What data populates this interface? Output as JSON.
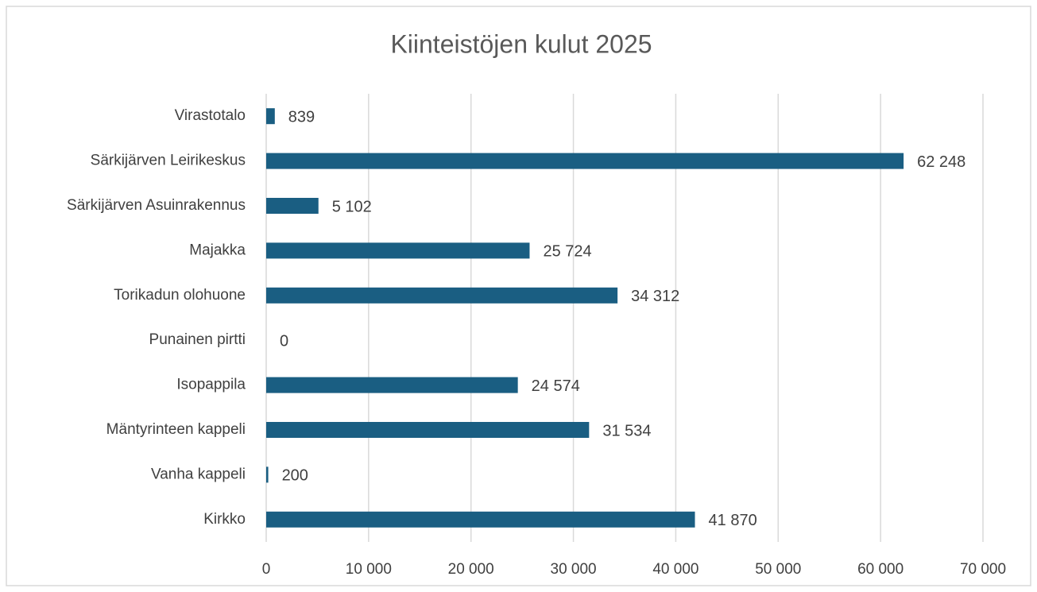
{
  "chart_data": {
    "type": "barh",
    "title": "Kiinteistöjen kulut 2025",
    "categories": [
      "Virastotalo",
      "Särkijärven Leirikeskus",
      "Särkijärven Asuinrakennus",
      "Majakka",
      "Torikadun olohuone",
      "Punainen pirtti",
      "Isopappila",
      "Mäntyrinteen kappeli",
      "Vanha kappeli",
      "Kirkko"
    ],
    "values": [
      839,
      62248,
      5102,
      25724,
      34312,
      0,
      24574,
      31534,
      200,
      41870
    ],
    "value_labels": [
      "839",
      "62 248",
      "5 102",
      "25 724",
      "34 312",
      "0",
      "24 574",
      "31 534",
      "200",
      "41 870"
    ],
    "color": "#1a5e82",
    "xlim": [
      0,
      70000
    ],
    "xticks": [
      0,
      {
        "value": 10000,
        "label": "10 000"
      },
      {
        "value": 20000,
        "label": "20 000"
      },
      {
        "value": 30000,
        "label": "30 000"
      },
      {
        "value": 40000,
        "label": "40 000"
      },
      {
        "value": 50000,
        "label": "50 000"
      },
      {
        "value": 60000,
        "label": "60 000"
      },
      {
        "value": 70000,
        "label": "70 000"
      }
    ],
    "grid": true
  }
}
